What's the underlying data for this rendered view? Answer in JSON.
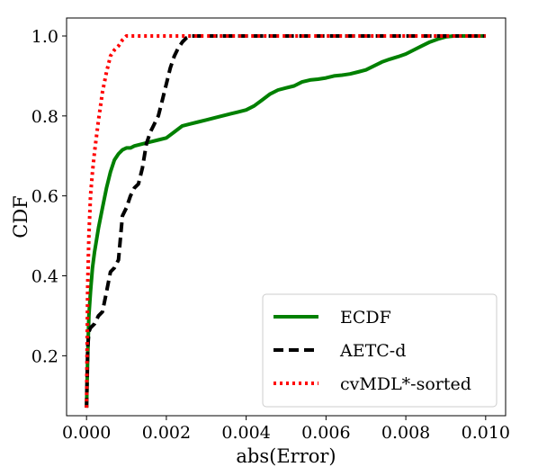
{
  "chart_data": {
    "type": "line",
    "title": "",
    "xlabel": "abs(Error)",
    "ylabel": "CDF",
    "xlim": [
      -0.0005,
      0.0105
    ],
    "ylim": [
      0.05,
      1.045
    ],
    "xticks": [
      0.0,
      0.002,
      0.004,
      0.006,
      0.008,
      0.01
    ],
    "xtick_labels": [
      "0.000",
      "0.002",
      "0.004",
      "0.006",
      "0.008",
      "0.010"
    ],
    "yticks": [
      0.2,
      0.4,
      0.6,
      0.8,
      1.0
    ],
    "ytick_labels": [
      "0.2",
      "0.4",
      "0.6",
      "0.8",
      "1.0"
    ],
    "grid": false,
    "legend_position": "bottom-right",
    "series": [
      {
        "name": "ECDF",
        "color": "#008000",
        "style": "solid",
        "x": [
          0.0,
          3e-05,
          6e-05,
          0.0001,
          0.00015,
          0.0002,
          0.0003,
          0.0004,
          0.0005,
          0.0006,
          0.0007,
          0.0008,
          0.0009,
          0.001,
          0.0011,
          0.0012,
          0.0014,
          0.0016,
          0.0018,
          0.002,
          0.0022,
          0.0024,
          0.0026,
          0.0028,
          0.003,
          0.0032,
          0.0034,
          0.0036,
          0.0038,
          0.004,
          0.0042,
          0.0044,
          0.0046,
          0.0048,
          0.005,
          0.0052,
          0.0054,
          0.0056,
          0.0058,
          0.006,
          0.0062,
          0.0064,
          0.0066,
          0.0068,
          0.007,
          0.0072,
          0.0074,
          0.0076,
          0.0078,
          0.008,
          0.0082,
          0.0084,
          0.0086,
          0.0088,
          0.009,
          0.0092,
          0.0095,
          0.01
        ],
        "y": [
          0.07,
          0.2,
          0.3,
          0.36,
          0.42,
          0.46,
          0.52,
          0.57,
          0.62,
          0.66,
          0.69,
          0.705,
          0.715,
          0.72,
          0.72,
          0.725,
          0.73,
          0.735,
          0.74,
          0.745,
          0.76,
          0.775,
          0.78,
          0.785,
          0.79,
          0.795,
          0.8,
          0.805,
          0.81,
          0.815,
          0.825,
          0.84,
          0.855,
          0.865,
          0.87,
          0.875,
          0.885,
          0.89,
          0.892,
          0.895,
          0.9,
          0.902,
          0.905,
          0.91,
          0.915,
          0.925,
          0.935,
          0.942,
          0.948,
          0.955,
          0.965,
          0.975,
          0.985,
          0.992,
          0.998,
          1.0,
          1.0,
          1.0
        ]
      },
      {
        "name": "AETC-d",
        "color": "#000000",
        "style": "dashed",
        "x": [
          0.0,
          3e-05,
          6e-05,
          0.0001,
          0.0002,
          0.0003,
          0.0004,
          0.0005,
          0.0006,
          0.0007,
          0.0008,
          0.0009,
          0.001,
          0.0011,
          0.0012,
          0.0013,
          0.0014,
          0.0015,
          0.0016,
          0.0017,
          0.0018,
          0.0019,
          0.002,
          0.0021,
          0.0022,
          0.0023,
          0.0024,
          0.0025,
          0.0026,
          0.0027,
          0.01
        ],
        "y": [
          0.07,
          0.22,
          0.26,
          0.27,
          0.28,
          0.3,
          0.31,
          0.36,
          0.41,
          0.42,
          0.44,
          0.55,
          0.57,
          0.6,
          0.62,
          0.63,
          0.67,
          0.73,
          0.76,
          0.78,
          0.8,
          0.84,
          0.88,
          0.92,
          0.95,
          0.97,
          0.985,
          0.995,
          1.0,
          1.0,
          1.0
        ]
      },
      {
        "name": "cvMDL*-sorted",
        "color": "#ff0000",
        "style": "dotted",
        "x": [
          0.0,
          3e-05,
          6e-05,
          0.0001,
          0.00015,
          0.0002,
          0.0003,
          0.0004,
          0.0005,
          0.0006,
          0.0007,
          0.0008,
          0.0009,
          0.001,
          0.0011,
          0.01
        ],
        "y": [
          0.07,
          0.38,
          0.5,
          0.6,
          0.66,
          0.71,
          0.79,
          0.86,
          0.91,
          0.95,
          0.965,
          0.975,
          0.99,
          1.0,
          1.0,
          1.0
        ]
      }
    ]
  }
}
